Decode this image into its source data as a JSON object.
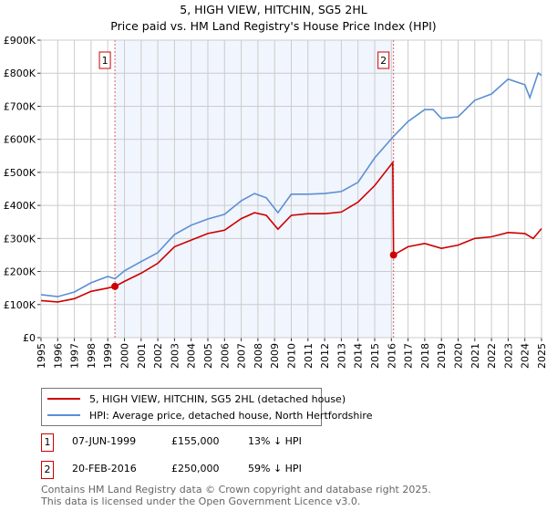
{
  "chart_data": {
    "type": "line",
    "title": "5, HIGH VIEW, HITCHIN, SG5 2HL",
    "subtitle": "Price paid vs. HM Land Registry's House Price Index (HPI)",
    "xlim": [
      1995,
      2025
    ],
    "ylim": [
      0,
      900000
    ],
    "grid": true,
    "x_ticks": [
      "1995",
      "1996",
      "1997",
      "1998",
      "1999",
      "2000",
      "2001",
      "2002",
      "2003",
      "2004",
      "2005",
      "2006",
      "2007",
      "2008",
      "2009",
      "2010",
      "2011",
      "2012",
      "2013",
      "2014",
      "2015",
      "2016",
      "2017",
      "2018",
      "2019",
      "2020",
      "2021",
      "2022",
      "2023",
      "2024",
      "2025"
    ],
    "y_ticks": [
      {
        "v": 0,
        "label": "£0"
      },
      {
        "v": 100000,
        "label": "£100K"
      },
      {
        "v": 200000,
        "label": "£200K"
      },
      {
        "v": 300000,
        "label": "£300K"
      },
      {
        "v": 400000,
        "label": "£400K"
      },
      {
        "v": 500000,
        "label": "£500K"
      },
      {
        "v": 600000,
        "label": "£600K"
      },
      {
        "v": 700000,
        "label": "£700K"
      },
      {
        "v": 800000,
        "label": "£800K"
      },
      {
        "v": 900000,
        "label": "£900K"
      }
    ],
    "series": [
      {
        "name": "5, HIGH VIEW, HITCHIN, SG5 2HL (detached house)",
        "color": "#cc0000",
        "x": [
          1995,
          1996,
          1997,
          1998,
          1999,
          1999.43,
          2000,
          2001,
          2002,
          2003,
          2004,
          2005,
          2006,
          2007,
          2007.8,
          2008.5,
          2009.2,
          2010,
          2011,
          2012,
          2013,
          2014,
          2015,
          2016.08,
          2016.13,
          2017,
          2018,
          2019,
          2020,
          2021,
          2022,
          2023,
          2024,
          2024.5,
          2025
        ],
        "y": [
          112000,
          108000,
          118000,
          140000,
          150000,
          155000,
          170000,
          195000,
          225000,
          275000,
          295000,
          315000,
          325000,
          360000,
          378000,
          370000,
          328000,
          370000,
          375000,
          375000,
          380000,
          410000,
          460000,
          530000,
          250000,
          275000,
          285000,
          270000,
          280000,
          300000,
          305000,
          318000,
          315000,
          300000,
          330000
        ]
      },
      {
        "name": "HPI: Average price, detached house, North Hertfordshire",
        "color": "#5b8fd4",
        "x": [
          1995,
          1996,
          1997,
          1998,
          1999,
          1999.43,
          2000,
          2001,
          2002,
          2003,
          2004,
          2005,
          2006,
          2007,
          2007.8,
          2008.5,
          2009.2,
          2010,
          2011,
          2012,
          2013,
          2014,
          2015,
          2016.13,
          2017,
          2018,
          2018.5,
          2019,
          2020,
          2021,
          2022,
          2023,
          2024,
          2024.3,
          2024.8,
          2025
        ],
        "y": [
          130000,
          124000,
          138000,
          166000,
          185000,
          178000,
          202000,
          230000,
          257000,
          312000,
          340000,
          359000,
          373000,
          414000,
          436000,
          423000,
          378000,
          434000,
          434000,
          436000,
          442000,
          470000,
          544000,
          609000,
          654000,
          690000,
          690000,
          663000,
          668000,
          718000,
          737000,
          782000,
          765000,
          726000,
          801000,
          793000
        ]
      }
    ],
    "annotations": [
      {
        "label": "1",
        "x": 1999.43,
        "y": 155000
      },
      {
        "label": "2",
        "x": 2016.13,
        "y": 250000
      }
    ],
    "shaded_range": [
      1999.43,
      2016.13
    ],
    "legend_position": "below"
  },
  "legend": [
    {
      "label": "5, HIGH VIEW, HITCHIN, SG5 2HL (detached house)",
      "color": "#cc0000"
    },
    {
      "label": "HPI: Average price, detached house, North Hertfordshire",
      "color": "#5b8fd4"
    }
  ],
  "sales": [
    {
      "num": "1",
      "date": "07-JUN-1999",
      "price": "£155,000",
      "hpi": "13% ↓ HPI"
    },
    {
      "num": "2",
      "date": "20-FEB-2016",
      "price": "£250,000",
      "hpi": "59% ↓ HPI"
    }
  ],
  "footer": {
    "line1": "Contains HM Land Registry data © Crown copyright and database right 2025.",
    "line2": "This data is licensed under the Open Government Licence v3.0."
  }
}
